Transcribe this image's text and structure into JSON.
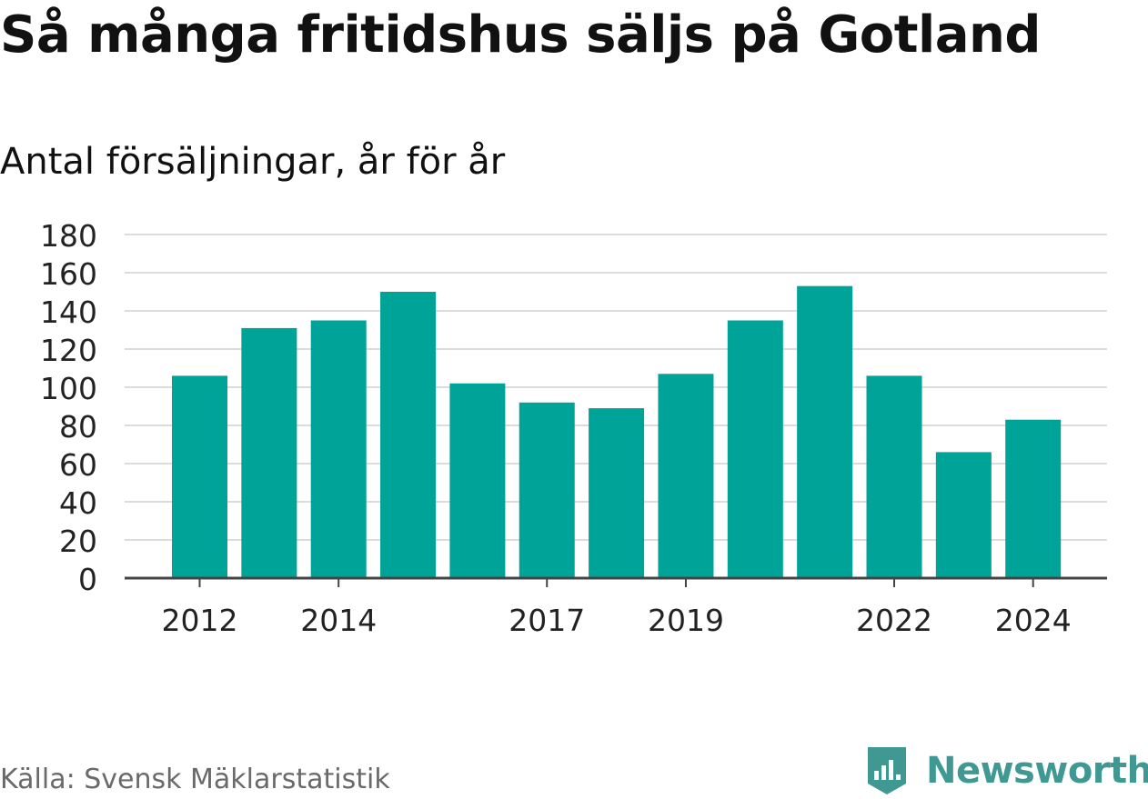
{
  "title": "Så många fritidshus säljs på Gotland",
  "subtitle": "Antal försäljningar, år för år",
  "source": "Källa: Svensk Mäklarstatistik",
  "logo_text": "Newsworthy",
  "colors": {
    "bar": "#00a398",
    "grid": "#dcdcdc",
    "axis": "#444444",
    "logo": "#3f9892"
  },
  "chart_data": {
    "type": "bar",
    "categories": [
      "2012",
      "2013",
      "2014",
      "2015",
      "2016",
      "2017",
      "2018",
      "2019",
      "2020",
      "2021",
      "2022",
      "2023",
      "2024"
    ],
    "values": [
      106,
      131,
      135,
      150,
      102,
      92,
      89,
      107,
      135,
      153,
      106,
      66,
      83
    ],
    "x_tick_labels": [
      "2012",
      "2014",
      "2017",
      "2019",
      "2022",
      "2024"
    ],
    "y_ticks": [
      0,
      20,
      40,
      60,
      80,
      100,
      120,
      140,
      160,
      180
    ],
    "ylim": [
      0,
      180
    ],
    "grid": true,
    "xlabel": "",
    "ylabel": ""
  }
}
